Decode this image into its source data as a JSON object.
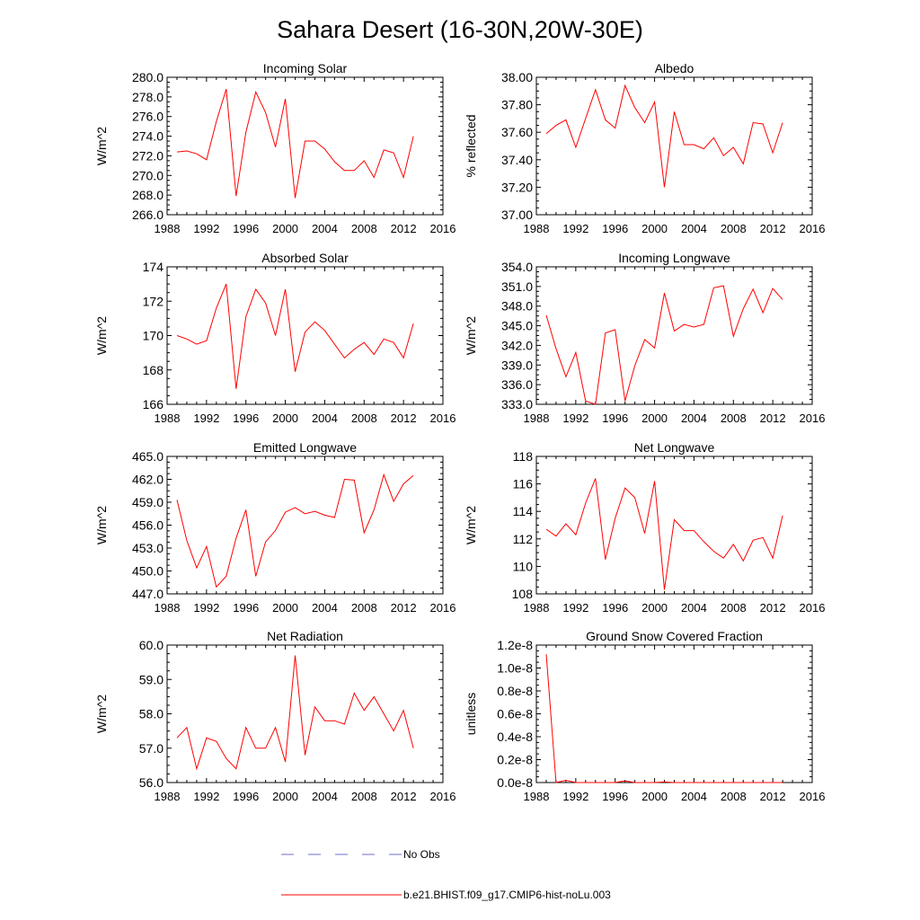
{
  "page_title": "Sahara Desert (16-30N,20W-30E)",
  "legend": {
    "obs_label": "No Obs",
    "model_label": "b.e21.BHIST.f09_g17.CMIP6-hist-noLu.003",
    "obs_color": "#6f6fd0",
    "model_color": "#ff0000"
  },
  "chart_data": [
    {
      "type": "line",
      "title": "Incoming Solar",
      "ylabel": "W/m^2",
      "xlim": [
        1988,
        2016
      ],
      "ylim": [
        266,
        280
      ],
      "xticks": [
        "1988",
        "1992",
        "1996",
        "2000",
        "2004",
        "2008",
        "2012",
        "2016"
      ],
      "yticks": [
        "266.0",
        "268.0",
        "270.0",
        "272.0",
        "274.0",
        "276.0",
        "278.0",
        "280.0"
      ],
      "x": [
        1989,
        1990,
        1991,
        1992,
        1993,
        1994,
        1995,
        1996,
        1997,
        1998,
        1999,
        2000,
        2001,
        2002,
        2003,
        2004,
        2005,
        2006,
        2007,
        2008,
        2009,
        2010,
        2011,
        2012,
        2013
      ],
      "series": [
        {
          "values": [
            272.4,
            272.5,
            272.2,
            271.6,
            275.5,
            278.8,
            267.9,
            274.4,
            278.5,
            276.4,
            272.9,
            277.8,
            267.7,
            273.5,
            273.5,
            272.7,
            271.4,
            270.5,
            270.5,
            271.5,
            269.8,
            272.6,
            272.3,
            269.8,
            274.0
          ]
        }
      ]
    },
    {
      "type": "line",
      "title": "Albedo",
      "ylabel": "% reflected",
      "xlim": [
        1988,
        2016
      ],
      "ylim": [
        37.0,
        38.0
      ],
      "xticks": [
        "1988",
        "1992",
        "1996",
        "2000",
        "2004",
        "2008",
        "2012",
        "2016"
      ],
      "yticks": [
        "37.00",
        "37.20",
        "37.40",
        "37.60",
        "37.80",
        "38.00"
      ],
      "x": [
        1989,
        1990,
        1991,
        1992,
        1993,
        1994,
        1995,
        1996,
        1997,
        1998,
        1999,
        2000,
        2001,
        2002,
        2003,
        2004,
        2005,
        2006,
        2007,
        2008,
        2009,
        2010,
        2011,
        2012,
        2013
      ],
      "series": [
        {
          "values": [
            37.59,
            37.65,
            37.69,
            37.49,
            37.7,
            37.91,
            37.69,
            37.63,
            37.94,
            37.78,
            37.67,
            37.82,
            37.2,
            37.75,
            37.51,
            37.51,
            37.48,
            37.56,
            37.43,
            37.49,
            37.37,
            37.67,
            37.66,
            37.45,
            37.67
          ]
        }
      ]
    },
    {
      "type": "line",
      "title": "Absorbed Solar",
      "ylabel": "W/m^2",
      "xlim": [
        1988,
        2016
      ],
      "ylim": [
        166,
        174
      ],
      "xticks": [
        "1988",
        "1992",
        "1996",
        "2000",
        "2004",
        "2008",
        "2012",
        "2016"
      ],
      "yticks": [
        "166",
        "168",
        "170",
        "172",
        "174"
      ],
      "x": [
        1989,
        1990,
        1991,
        1992,
        1993,
        1994,
        1995,
        1996,
        1997,
        1998,
        1999,
        2000,
        2001,
        2002,
        2003,
        2004,
        2005,
        2006,
        2007,
        2008,
        2009,
        2010,
        2011,
        2012,
        2013
      ],
      "series": [
        {
          "values": [
            170.0,
            169.8,
            169.5,
            169.7,
            171.6,
            173.0,
            166.9,
            171.1,
            172.7,
            171.9,
            170.0,
            172.7,
            167.9,
            170.2,
            170.8,
            170.3,
            169.5,
            168.7,
            169.2,
            169.6,
            168.9,
            169.8,
            169.6,
            168.7,
            170.7
          ]
        }
      ]
    },
    {
      "type": "line",
      "title": "Incoming Longwave",
      "ylabel": "W/m^2",
      "xlim": [
        1988,
        2016
      ],
      "ylim": [
        333,
        354
      ],
      "xticks": [
        "1988",
        "1992",
        "1996",
        "2000",
        "2004",
        "2008",
        "2012",
        "2016"
      ],
      "yticks": [
        "333.0",
        "336.0",
        "339.0",
        "342.0",
        "345.0",
        "348.0",
        "351.0",
        "354.0"
      ],
      "x": [
        1989,
        1990,
        1991,
        1992,
        1993,
        1994,
        1995,
        1996,
        1997,
        1998,
        1999,
        2000,
        2001,
        2002,
        2003,
        2004,
        2005,
        2006,
        2007,
        2008,
        2009,
        2010,
        2011,
        2012,
        2013
      ],
      "series": [
        {
          "values": [
            346.6,
            341.5,
            337.2,
            340.9,
            333.5,
            333.0,
            343.9,
            344.4,
            333.5,
            338.9,
            342.9,
            341.6,
            350.0,
            344.2,
            345.2,
            344.8,
            345.2,
            350.8,
            351.1,
            343.4,
            347.6,
            350.6,
            347.0,
            350.7,
            349.0
          ]
        }
      ]
    },
    {
      "type": "line",
      "title": "Emitted Longwave",
      "ylabel": "W/m^2",
      "xlim": [
        1988,
        2016
      ],
      "ylim": [
        447,
        465
      ],
      "xticks": [
        "1988",
        "1992",
        "1996",
        "2000",
        "2004",
        "2008",
        "2012",
        "2016"
      ],
      "yticks": [
        "447.0",
        "450.0",
        "453.0",
        "456.0",
        "459.0",
        "462.0",
        "465.0"
      ],
      "x": [
        1989,
        1990,
        1991,
        1992,
        1993,
        1994,
        1995,
        1996,
        1997,
        1998,
        1999,
        2000,
        2001,
        2002,
        2003,
        2004,
        2005,
        2006,
        2007,
        2008,
        2009,
        2010,
        2011,
        2012,
        2013
      ],
      "series": [
        {
          "values": [
            459.3,
            454.0,
            450.4,
            453.2,
            447.9,
            449.3,
            454.3,
            458.0,
            449.3,
            453.8,
            455.3,
            457.7,
            458.3,
            457.5,
            457.8,
            457.3,
            457.0,
            462.0,
            461.9,
            455.0,
            458.0,
            462.6,
            459.1,
            461.4,
            462.5
          ]
        }
      ]
    },
    {
      "type": "line",
      "title": "Net Longwave",
      "ylabel": "W/m^2",
      "xlim": [
        1988,
        2016
      ],
      "ylim": [
        108,
        118
      ],
      "xticks": [
        "1988",
        "1992",
        "1996",
        "2000",
        "2004",
        "2008",
        "2012",
        "2016"
      ],
      "yticks": [
        "108",
        "110",
        "112",
        "114",
        "116",
        "118"
      ],
      "x": [
        1989,
        1990,
        1991,
        1992,
        1993,
        1994,
        1995,
        1996,
        1997,
        1998,
        1999,
        2000,
        2001,
        2002,
        2003,
        2004,
        2005,
        2006,
        2007,
        2008,
        2009,
        2010,
        2011,
        2012,
        2013
      ],
      "series": [
        {
          "values": [
            112.7,
            112.2,
            113.1,
            112.3,
            114.6,
            116.4,
            110.5,
            113.5,
            115.7,
            115.0,
            112.4,
            116.2,
            108.3,
            113.4,
            112.6,
            112.6,
            111.8,
            111.1,
            110.6,
            111.6,
            110.4,
            111.9,
            112.1,
            110.6,
            113.7
          ]
        }
      ]
    },
    {
      "type": "line",
      "title": "Net Radiation",
      "ylabel": "W/m^2",
      "xlim": [
        1988,
        2016
      ],
      "ylim": [
        56,
        60
      ],
      "xticks": [
        "1988",
        "1992",
        "1996",
        "2000",
        "2004",
        "2008",
        "2012",
        "2016"
      ],
      "yticks": [
        "56.0",
        "57.0",
        "58.0",
        "59.0",
        "60.0"
      ],
      "x": [
        1989,
        1990,
        1991,
        1992,
        1993,
        1994,
        1995,
        1996,
        1997,
        1998,
        1999,
        2000,
        2001,
        2002,
        2003,
        2004,
        2005,
        2006,
        2007,
        2008,
        2009,
        2010,
        2011,
        2012,
        2013
      ],
      "series": [
        {
          "values": [
            57.3,
            57.6,
            56.4,
            57.3,
            57.2,
            56.7,
            56.4,
            57.6,
            57.0,
            57.0,
            57.6,
            56.6,
            59.7,
            56.8,
            58.2,
            57.8,
            57.8,
            57.7,
            58.6,
            58.1,
            58.5,
            58.0,
            57.5,
            58.1,
            57.0
          ]
        }
      ]
    },
    {
      "type": "line",
      "title": "Ground Snow Covered Fraction",
      "ylabel": "unitless",
      "xlim": [
        1988,
        2016
      ],
      "ylim": [
        0,
        1.2e-08
      ],
      "xticks": [
        "1988",
        "1992",
        "1996",
        "2000",
        "2004",
        "2008",
        "2012",
        "2016"
      ],
      "yticks": [
        "0.0e-8",
        "0.2e-8",
        "0.4e-8",
        "0.6e-8",
        "0.8e-8",
        "1.0e-8",
        "1.2e-8"
      ],
      "x": [
        1989,
        1990,
        1991,
        1992,
        1993,
        1994,
        1995,
        1996,
        1997,
        1998,
        1999,
        2000,
        2001,
        2002,
        2003,
        2004,
        2005,
        2006,
        2007,
        2008,
        2009,
        2010,
        2011,
        2012,
        2013
      ],
      "series": [
        {
          "values": [
            1.12e-08,
            0.0,
            2e-10,
            0.0,
            0.0,
            0.0,
            0.0,
            0.0,
            1.5e-10,
            0.0,
            0.0,
            0.0,
            5e-11,
            0.0,
            0.0,
            0.0,
            0.0,
            0.0,
            0.0,
            0.0,
            0.0,
            0.0,
            0.0,
            0.0,
            0.0
          ]
        }
      ]
    }
  ]
}
